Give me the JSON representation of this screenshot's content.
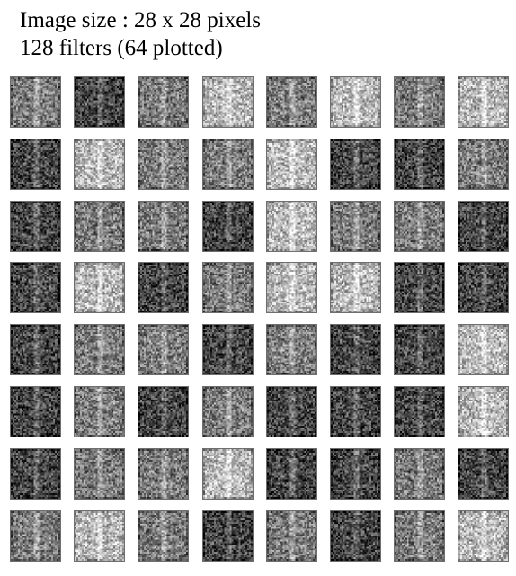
{
  "caption": {
    "line1": "Image size : 28 x 28 pixels",
    "line2": "128 filters (64 plotted)"
  },
  "grid": {
    "rows": 8,
    "cols": 8,
    "tones": [
      [
        "mid",
        "dark",
        "mid",
        "light",
        "mid",
        "light",
        "mid",
        "light"
      ],
      [
        "dark",
        "light",
        "mid",
        "mid",
        "light",
        "dark",
        "dark",
        "mid"
      ],
      [
        "dark",
        "mid",
        "mid",
        "dark",
        "light",
        "mid",
        "mid",
        "dark"
      ],
      [
        "dark",
        "light",
        "dark",
        "mid",
        "light",
        "light",
        "dark",
        "dark"
      ],
      [
        "dark",
        "mid",
        "mid",
        "dark",
        "mid",
        "dark",
        "dark",
        "light"
      ],
      [
        "dark",
        "mid",
        "dark",
        "mid",
        "dark",
        "dark",
        "dark",
        "light"
      ],
      [
        "dark",
        "mid",
        "mid",
        "light",
        "dark",
        "dark",
        "mid",
        "dark"
      ],
      [
        "mid",
        "light",
        "mid",
        "dark",
        "mid",
        "dark",
        "mid",
        "light"
      ]
    ]
  }
}
